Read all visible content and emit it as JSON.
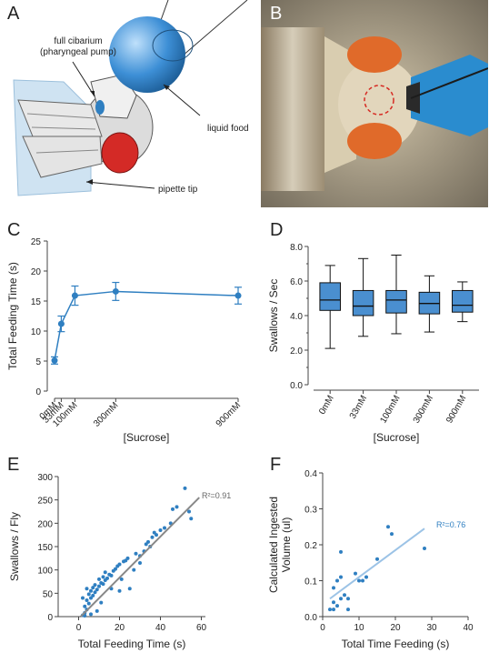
{
  "panels": {
    "a": {
      "label": "A",
      "callouts": {
        "cibarium": "full cibarium\n(pharyngeal pump)",
        "liquid_food": "liquid food",
        "pipette_tip": "pipette tip"
      }
    },
    "b": {
      "label": "B"
    },
    "c": {
      "label": "C"
    },
    "d": {
      "label": "D"
    },
    "e": {
      "label": "E"
    },
    "f": {
      "label": "F"
    }
  },
  "colors": {
    "accent_blue": "#2f7fc1",
    "box_blue": "#4a8fd0",
    "fit_gray": "#888888",
    "fit_lightblue": "#9cc3e6"
  },
  "chart_data": [
    {
      "id": "c",
      "type": "line",
      "xlabel": "[Sucrose]",
      "ylabel": "Total Feeding Time (s)",
      "ylim": [
        0,
        25
      ],
      "yticks": [
        0,
        5,
        10,
        15,
        20,
        25
      ],
      "xlim": [
        0,
        900
      ],
      "x": [
        0,
        33,
        100,
        300,
        900
      ],
      "xticklabels": [
        "0mM",
        "33mM",
        "100mM",
        "300mM",
        "900mM"
      ],
      "values": [
        5.1,
        11.2,
        15.9,
        16.6,
        15.9
      ],
      "err": [
        0.6,
        1.3,
        1.6,
        1.5,
        1.4
      ]
    },
    {
      "id": "d",
      "type": "box",
      "xlabel": "[Sucrose]",
      "ylabel": "Swallows / Sec",
      "ylim": [
        0,
        8
      ],
      "yticks": [
        "0.0",
        "2.0",
        "4.0",
        "6.0",
        "8.0"
      ],
      "categories": [
        "0mM",
        "33mM",
        "100mM",
        "300mM",
        "900mM"
      ],
      "boxes": [
        {
          "min": 2.1,
          "q1": 4.3,
          "median": 4.9,
          "q3": 5.9,
          "max": 6.9
        },
        {
          "min": 2.8,
          "q1": 4.0,
          "median": 4.55,
          "q3": 5.45,
          "max": 7.3
        },
        {
          "min": 2.95,
          "q1": 4.15,
          "median": 4.9,
          "q3": 5.45,
          "max": 7.5
        },
        {
          "min": 3.05,
          "q1": 4.1,
          "median": 4.7,
          "q3": 5.35,
          "max": 6.3
        },
        {
          "min": 3.65,
          "q1": 4.2,
          "median": 4.6,
          "q3": 5.45,
          "max": 5.95
        }
      ]
    },
    {
      "id": "e",
      "type": "scatter",
      "xlabel": "Total Feeding Time (s)",
      "ylabel": "Swallows / Fly",
      "xlim": [
        -10,
        62
      ],
      "ylim": [
        0,
        300
      ],
      "xticks": [
        0,
        20,
        40,
        60
      ],
      "yticks": [
        0,
        50,
        100,
        150,
        200,
        250,
        300
      ],
      "annotation": "R²=0.91",
      "fit": {
        "x0": 1,
        "y0": 0,
        "x1": 59,
        "y1": 255
      },
      "points": [
        [
          2,
          3
        ],
        [
          3,
          8
        ],
        [
          4,
          15
        ],
        [
          3,
          22
        ],
        [
          5,
          28
        ],
        [
          4,
          35
        ],
        [
          6,
          40
        ],
        [
          5,
          48
        ],
        [
          7,
          45
        ],
        [
          6,
          55
        ],
        [
          8,
          52
        ],
        [
          7,
          62
        ],
        [
          9,
          58
        ],
        [
          8,
          68
        ],
        [
          10,
          65
        ],
        [
          11,
          72
        ],
        [
          12,
          70
        ],
        [
          10,
          80
        ],
        [
          13,
          78
        ],
        [
          12,
          85
        ],
        [
          14,
          82
        ],
        [
          15,
          90
        ],
        [
          13,
          95
        ],
        [
          16,
          88
        ],
        [
          17,
          98
        ],
        [
          18,
          102
        ],
        [
          19,
          108
        ],
        [
          20,
          112
        ],
        [
          22,
          118
        ],
        [
          21,
          80
        ],
        [
          24,
          125
        ],
        [
          23,
          120
        ],
        [
          27,
          100
        ],
        [
          28,
          135
        ],
        [
          30,
          130
        ],
        [
          32,
          140
        ],
        [
          33,
          155
        ],
        [
          34,
          160
        ],
        [
          35,
          150
        ],
        [
          36,
          170
        ],
        [
          37,
          180
        ],
        [
          38,
          175
        ],
        [
          40,
          185
        ],
        [
          42,
          190
        ],
        [
          45,
          200
        ],
        [
          46,
          230
        ],
        [
          48,
          235
        ],
        [
          52,
          275
        ],
        [
          55,
          210
        ],
        [
          54,
          225
        ],
        [
          30,
          115
        ],
        [
          25,
          60
        ],
        [
          3,
          2
        ],
        [
          6,
          5
        ],
        [
          9,
          12
        ],
        [
          11,
          30
        ],
        [
          16,
          60
        ],
        [
          20,
          55
        ],
        [
          2,
          40
        ],
        [
          4,
          60
        ]
      ]
    },
    {
      "id": "f",
      "type": "scatter",
      "xlabel": "Total Time Feeding (s)",
      "ylabel": "Calculated Ingested\nVolume (ul)",
      "xlim": [
        0,
        40
      ],
      "ylim": [
        0,
        0.4
      ],
      "xticks": [
        0,
        10,
        20,
        30,
        40
      ],
      "yticks": [
        "0.0",
        "0.1",
        "0.2",
        "0.3",
        "0.4"
      ],
      "annotation": "R²=0.76",
      "fit": {
        "x0": 2,
        "y0": 0.05,
        "x1": 28,
        "y1": 0.245
      },
      "points": [
        [
          2,
          0.02
        ],
        [
          3,
          0.04
        ],
        [
          3,
          0.08
        ],
        [
          4,
          0.1
        ],
        [
          4,
          0.03
        ],
        [
          5,
          0.18
        ],
        [
          5,
          0.05
        ],
        [
          6,
          0.06
        ],
        [
          7,
          0.02
        ],
        [
          7,
          0.05
        ],
        [
          9,
          0.12
        ],
        [
          10,
          0.1
        ],
        [
          11,
          0.1
        ],
        [
          12,
          0.11
        ],
        [
          15,
          0.16
        ],
        [
          18,
          0.25
        ],
        [
          19,
          0.23
        ],
        [
          28,
          0.19
        ],
        [
          3,
          0.02
        ],
        [
          5,
          0.11
        ]
      ]
    }
  ]
}
